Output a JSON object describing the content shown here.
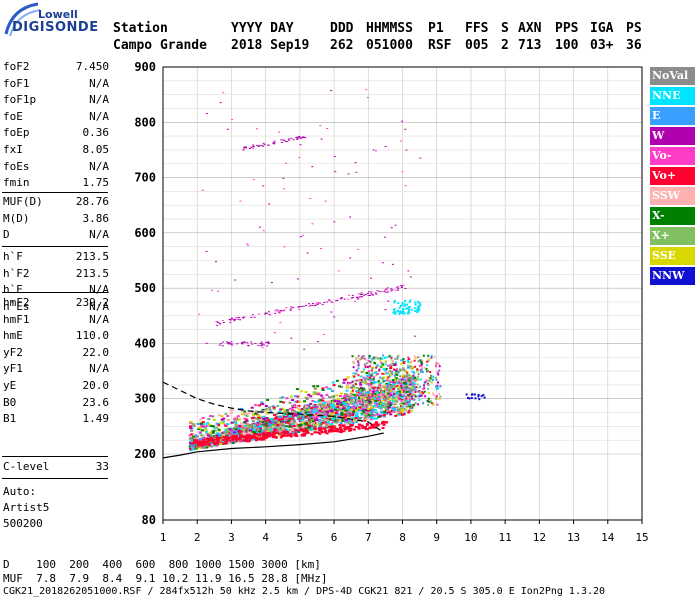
{
  "logo": {
    "line1": "Lowell",
    "line2": "DIGISONDE"
  },
  "header": {
    "row1": [
      "Station",
      "YYYY DAY",
      "DDD",
      "HHMMSS",
      "P1",
      "FFS",
      "S",
      "AXN",
      "PPS",
      "IGA",
      "PS"
    ],
    "row2": [
      "Campo Grande",
      "2018 Sep19",
      "262",
      "051000",
      "RSF",
      "005",
      "2",
      "713",
      "100",
      "03+",
      "36"
    ]
  },
  "params_group1": [
    {
      "key": "foF2",
      "value": "7.450"
    },
    {
      "key": "foF1",
      "value": "N/A"
    },
    {
      "key": "foF1p",
      "value": "N/A"
    },
    {
      "key": "foE",
      "value": "N/A"
    },
    {
      "key": "foEp",
      "value": "0.36"
    },
    {
      "key": "fxI",
      "value": "8.05"
    },
    {
      "key": "foEs",
      "value": "N/A"
    },
    {
      "key": "fmin",
      "value": "1.75"
    }
  ],
  "params_group2": [
    {
      "key": "MUF(D)",
      "value": "28.76"
    },
    {
      "key": "M(D)",
      "value": "3.86"
    },
    {
      "key": "D",
      "value": "N/A"
    }
  ],
  "params_group3": [
    {
      "key": "h`F",
      "value": "213.5"
    },
    {
      "key": "h`F2",
      "value": "213.5"
    },
    {
      "key": "h`E",
      "value": "N/A"
    },
    {
      "key": "h`Es",
      "value": "N/A"
    }
  ],
  "params_group4": [
    {
      "key": "hmF2",
      "value": "239.2"
    },
    {
      "key": "hmF1",
      "value": "N/A"
    },
    {
      "key": "hmE",
      "value": "110.0"
    },
    {
      "key": "yF2",
      "value": "22.0"
    },
    {
      "key": "yF1",
      "value": "N/A"
    },
    {
      "key": "yE",
      "value": "20.0"
    },
    {
      "key": "B0",
      "value": "23.6"
    },
    {
      "key": "B1",
      "value": "1.49"
    }
  ],
  "params_group5": [
    {
      "key": "C-level",
      "value": "33"
    }
  ],
  "autoscale": {
    "line1": "Auto:",
    "line2": "Artist5",
    "line3": "500200"
  },
  "legend": [
    {
      "label": "NoVal",
      "color": "#8c8c8c"
    },
    {
      "label": "NNE",
      "color": "#00e5ff"
    },
    {
      "label": "E",
      "color": "#3aa0ff"
    },
    {
      "label": "W",
      "color": "#b000b0"
    },
    {
      "label": "Vo-",
      "color": "#ff3cc8"
    },
    {
      "label": "Vo+",
      "color": "#ff0030"
    },
    {
      "label": "SSW",
      "color": "#ffb0b0"
    },
    {
      "label": "X-",
      "color": "#008000"
    },
    {
      "label": "X+",
      "color": "#80c060"
    },
    {
      "label": "SSE",
      "color": "#d8d800"
    },
    {
      "label": "NNW",
      "color": "#1010d0"
    }
  ],
  "bottom": {
    "d_row": "D    100  200  400  600  800 1000 1500 3000 [km]",
    "muf_row": "MUF  7.8  7.9  8.4  9.1 10.2 11.9 16.5 28.8 [MHz]",
    "footer": "CGK21_2018262051000.RSF / 284fx512h 50 kHz 2.5 km / DPS-4D CGK21 821 / 20.5 S 305.0 E Ion2Png 1.3.20"
  },
  "chart_data": {
    "type": "scatter",
    "xlim": [
      1,
      15
    ],
    "ylim": [
      80,
      900
    ],
    "xticks": [
      1,
      2,
      3,
      4,
      5,
      6,
      7,
      8,
      9,
      10,
      11,
      12,
      13,
      14,
      15
    ],
    "yticks": [
      80,
      200,
      300,
      400,
      500,
      600,
      700,
      800,
      900
    ],
    "grid": true,
    "legend_placement": "right",
    "traces": {
      "profile_upper": {
        "x": [
          1.0,
          1.5,
          2.0,
          2.5,
          3.0,
          3.5,
          4.0,
          5.0,
          6.0,
          7.0,
          7.45
        ],
        "y": [
          330,
          315,
          300,
          290,
          283,
          278,
          275,
          272,
          268,
          258,
          239
        ]
      },
      "profile_lower": {
        "x": [
          1.0,
          1.5,
          2.0,
          3.0,
          4.0,
          5.0,
          6.0,
          7.0,
          7.45
        ],
        "y": [
          193,
          198,
          204,
          210,
          213,
          217,
          222,
          232,
          238
        ]
      },
      "main_f_trace_x": [
        1.75,
        8.05
      ],
      "main_f_trace_y": [
        213,
        320
      ],
      "upper_w_trace": {
        "x": [
          2.5,
          3.5,
          4.5,
          5.5,
          6.5,
          7.5,
          8.0
        ],
        "y": [
          440,
          445,
          455,
          465,
          475,
          490,
          540
        ]
      },
      "multihop_w_trace": {
        "x": [
          3.2,
          3.8,
          4.5,
          5.0,
          5.3
        ],
        "y": [
          755,
          762,
          768,
          772,
          785
        ]
      }
    }
  }
}
